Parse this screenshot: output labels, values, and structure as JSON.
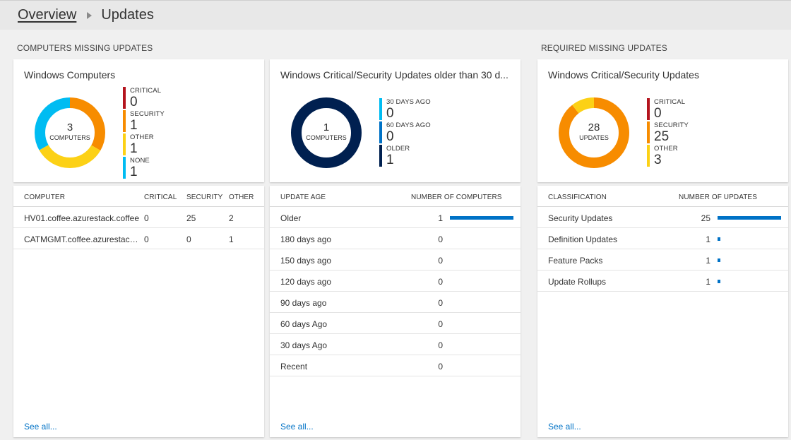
{
  "breadcrumb": {
    "parent": "Overview",
    "current": "Updates"
  },
  "sections": {
    "computers_missing": "COMPUTERS MISSING UPDATES",
    "required_missing": "REQUIRED MISSING UPDATES"
  },
  "colors": {
    "critical": "#b4141e",
    "security": "#f78c00",
    "other": "#fcd116",
    "none": "#00bcf2",
    "days30": "#00bcf2",
    "days60": "#0072c6",
    "older": "#002050",
    "bar": "#0072c6"
  },
  "tiles": {
    "computers": {
      "title": "Windows Computers",
      "center_value": "3",
      "center_label": "COMPUTERS",
      "legend": [
        {
          "label": "CRITICAL",
          "value": "0"
        },
        {
          "label": "SECURITY",
          "value": "1"
        },
        {
          "label": "OTHER",
          "value": "1"
        },
        {
          "label": "NONE",
          "value": "1"
        }
      ]
    },
    "older30": {
      "title": "Windows Critical/Security Updates older than 30 d...",
      "center_value": "1",
      "center_label": "COMPUTERS",
      "legend": [
        {
          "label": "30 DAYS AGO",
          "value": "0"
        },
        {
          "label": "60 DAYS AGO",
          "value": "0"
        },
        {
          "label": "OLDER",
          "value": "1"
        }
      ]
    },
    "critsec": {
      "title": "Windows Critical/Security Updates",
      "center_value": "28",
      "center_label": "UPDATES",
      "legend": [
        {
          "label": "CRITICAL",
          "value": "0"
        },
        {
          "label": "SECURITY",
          "value": "25"
        },
        {
          "label": "OTHER",
          "value": "3"
        }
      ]
    }
  },
  "tables": {
    "computers": {
      "headers": [
        "COMPUTER",
        "CRITICAL",
        "SECURITY",
        "OTHER"
      ],
      "rows": [
        [
          "HV01.coffee.azurestack.coffee",
          "0",
          "25",
          "2"
        ],
        [
          "CATMGMT.coffee.azurestack...",
          "0",
          "0",
          "1"
        ]
      ],
      "see_all": "See all..."
    },
    "update_age": {
      "headers": [
        "UPDATE AGE",
        "NUMBER OF COMPUTERS"
      ],
      "rows": [
        {
          "label": "Older",
          "value": "1",
          "fraction": 1.0
        },
        {
          "label": "180 days ago",
          "value": "0",
          "fraction": 0
        },
        {
          "label": "150 days ago",
          "value": "0",
          "fraction": 0
        },
        {
          "label": "120 days ago",
          "value": "0",
          "fraction": 0
        },
        {
          "label": "90 days ago",
          "value": "0",
          "fraction": 0
        },
        {
          "label": "60 days Ago",
          "value": "0",
          "fraction": 0
        },
        {
          "label": "30 days Ago",
          "value": "0",
          "fraction": 0
        },
        {
          "label": "Recent",
          "value": "0",
          "fraction": 0
        }
      ],
      "see_all": "See all..."
    },
    "classification": {
      "headers": [
        "CLASSIFICATION",
        "NUMBER OF UPDATES"
      ],
      "rows": [
        {
          "label": "Security Updates",
          "value": "25",
          "fraction": 1.0
        },
        {
          "label": "Definition Updates",
          "value": "1",
          "fraction": 0.04
        },
        {
          "label": "Feature Packs",
          "value": "1",
          "fraction": 0.04
        },
        {
          "label": "Update Rollups",
          "value": "1",
          "fraction": 0.04
        }
      ],
      "see_all": "See all..."
    }
  }
}
